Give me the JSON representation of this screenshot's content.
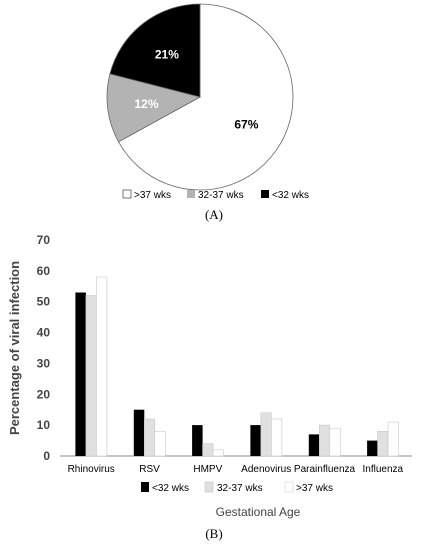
{
  "chart_data": [
    {
      "type": "pie",
      "categories": [
        ">37 wks",
        "32-37 wks",
        "<32 wks"
      ],
      "values": [
        67,
        12,
        21
      ],
      "value_labels": [
        "67%",
        "12%",
        "21%"
      ],
      "colors": [
        "#ffffff",
        "#b3b3b3",
        "#000000"
      ],
      "label_colors": [
        "#000000",
        "#ffffff",
        "#ffffff"
      ],
      "legend": [
        ">37 wks",
        "32-37 wks",
        "<32 wks"
      ],
      "legend_placement": "bottom",
      "panel_label": "(A)"
    },
    {
      "type": "bar",
      "categories": [
        "Rhinovirus",
        "RSV",
        "HMPV",
        "Adenovirus",
        "Parainfluenza",
        "Influenza"
      ],
      "series": [
        {
          "name": "<32 wks",
          "values": [
            53,
            15,
            10,
            10,
            7,
            5
          ],
          "color": "#000000"
        },
        {
          "name": "32-37 wks",
          "values": [
            52,
            12,
            4,
            14,
            10,
            8
          ],
          "color": "#e0e0e0"
        },
        {
          "name": ">37 wks",
          "values": [
            58,
            8,
            2,
            12,
            9,
            11
          ],
          "color": "#ffffff"
        }
      ],
      "xlabel": "Gestational Age",
      "ylabel": "Percentage of viral infection",
      "ylim": [
        0,
        70
      ],
      "yticks": [
        "0",
        "10",
        "20",
        "30",
        "40",
        "50",
        "60",
        "70"
      ],
      "ytick_values": [
        0,
        10,
        20,
        30,
        40,
        50,
        60,
        70
      ],
      "grid": false,
      "legend_placement": "bottom",
      "panel_label": "(B)"
    }
  ]
}
